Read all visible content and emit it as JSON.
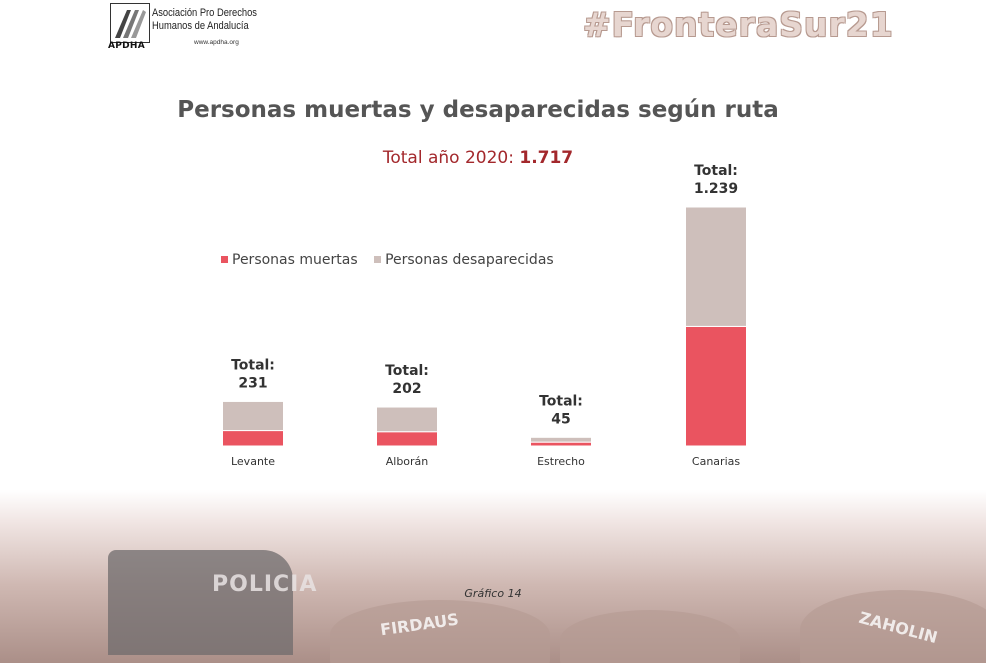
{
  "header": {
    "logo_acronym": "APDHA",
    "logo_line1": "Asociación Pro Derechos",
    "logo_line2": "Humanos de Andalucía",
    "logo_url": "www.apdha.org",
    "hashtag": "#FronteraSur21"
  },
  "background": {
    "police_text": "POLICIA",
    "boat_text_1": "FIRDAUS",
    "boat_text_2": "ZAHOLIN"
  },
  "footnote": "Gráfico 14",
  "colors": {
    "muertas": "#ea5460",
    "desaparecidas": "#cebfbb",
    "title": "#555555",
    "accent": "#a3282c"
  },
  "chart_data": {
    "type": "bar",
    "stacked": true,
    "title": "Personas muertas y desaparecidas según ruta",
    "subtitle_prefix": "Total año 2020: ",
    "subtitle_value": "1.717",
    "total_label": "Total:",
    "categories": [
      "Levante",
      "Alborán",
      "Estrecho",
      "Canarias"
    ],
    "totals_text": [
      "231",
      "202",
      "45",
      "1.239"
    ],
    "series": [
      {
        "name": "Personas muertas",
        "values": [
          80,
          74,
          20,
          620
        ]
      },
      {
        "name": "Personas desaparecidas",
        "values": [
          151,
          128,
          25,
          619
        ]
      }
    ],
    "legend_position": "top-left",
    "grid": false,
    "ylim": [
      0,
      1239
    ]
  }
}
